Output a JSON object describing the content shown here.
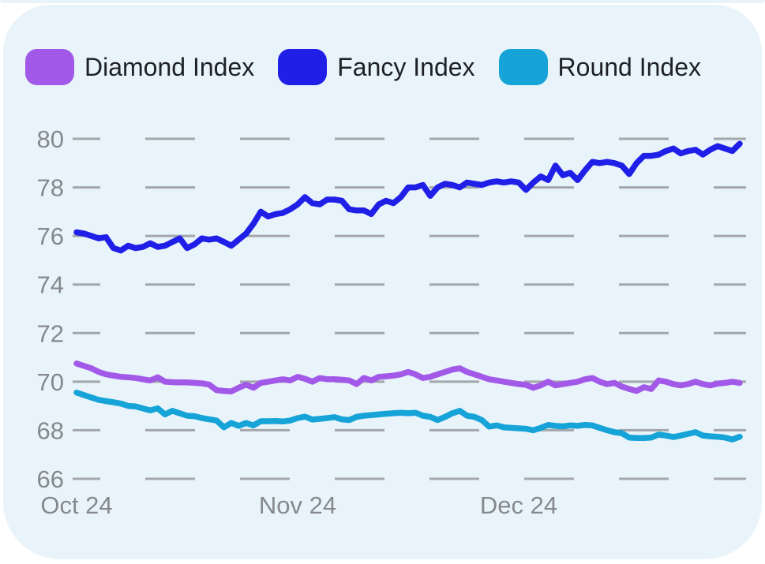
{
  "card": {
    "background": "#e9f4fa"
  },
  "legend": {
    "items": [
      {
        "label": "Diamond Index",
        "color": "#a259e8"
      },
      {
        "label": "Fancy Index",
        "color": "#1f1fe8"
      },
      {
        "label": "Round Index",
        "color": "#16a4d8"
      }
    ]
  },
  "chart_data": {
    "type": "line",
    "title": "",
    "xlabel": "",
    "ylabel": "",
    "grid": true,
    "grid_color": "#a3a7ab",
    "axis_text_color": "#85898d",
    "legend_position": "top",
    "y_ticks": [
      80,
      78,
      76,
      74,
      72,
      70,
      68,
      66
    ],
    "ylim": [
      65.5,
      80.5
    ],
    "x_tick_labels": [
      "Oct 24",
      "Nov 24",
      "Dec 24"
    ],
    "x_tick_indices": [
      0,
      30,
      60
    ],
    "series": [
      {
        "name": "Diamond Index",
        "color": "#a259e8",
        "values": [
          70.75,
          70.65,
          70.55,
          70.4,
          70.3,
          70.25,
          70.2,
          70.18,
          70.15,
          70.1,
          70.05,
          70.18,
          70.0,
          69.98,
          69.97,
          69.97,
          69.95,
          69.93,
          69.88,
          69.65,
          69.62,
          69.6,
          69.75,
          69.88,
          69.75,
          69.95,
          70.0,
          70.05,
          70.1,
          70.05,
          70.2,
          70.12,
          70.0,
          70.15,
          70.1,
          70.1,
          70.08,
          70.05,
          69.9,
          70.15,
          70.05,
          70.2,
          70.22,
          70.25,
          70.3,
          70.4,
          70.3,
          70.15,
          70.2,
          70.3,
          70.4,
          70.5,
          70.55,
          70.4,
          70.3,
          70.2,
          70.1,
          70.05,
          70.0,
          69.95,
          69.9,
          69.87,
          69.75,
          69.85,
          70.0,
          69.85,
          69.9,
          69.95,
          70.0,
          70.1,
          70.15,
          70.0,
          69.9,
          69.95,
          69.8,
          69.7,
          69.62,
          69.77,
          69.7,
          70.05,
          70.0,
          69.9,
          69.85,
          69.9,
          70.0,
          69.9,
          69.85,
          69.92,
          69.95,
          70.0,
          69.95
        ]
      },
      {
        "name": "Fancy Index",
        "color": "#1f1fe8",
        "values": [
          76.15,
          76.1,
          76.0,
          75.9,
          75.95,
          75.5,
          75.4,
          75.6,
          75.5,
          75.55,
          75.7,
          75.55,
          75.6,
          75.75,
          75.9,
          75.5,
          75.65,
          75.9,
          75.85,
          75.9,
          75.75,
          75.6,
          75.85,
          76.1,
          76.5,
          77.0,
          76.8,
          76.9,
          76.95,
          77.1,
          77.3,
          77.6,
          77.35,
          77.3,
          77.5,
          77.5,
          77.45,
          77.1,
          77.05,
          77.05,
          76.9,
          77.3,
          77.45,
          77.35,
          77.6,
          78.0,
          78.0,
          78.1,
          77.65,
          78.0,
          78.15,
          78.1,
          78.0,
          78.2,
          78.15,
          78.1,
          78.2,
          78.25,
          78.2,
          78.25,
          78.2,
          77.9,
          78.2,
          78.45,
          78.3,
          78.9,
          78.5,
          78.6,
          78.3,
          78.7,
          79.05,
          79.0,
          79.05,
          79.0,
          78.9,
          78.55,
          79.0,
          79.3,
          79.3,
          79.35,
          79.5,
          79.6,
          79.4,
          79.5,
          79.55,
          79.35,
          79.55,
          79.7,
          79.6,
          79.5,
          79.8
        ]
      },
      {
        "name": "Round Index",
        "color": "#16a4d8",
        "values": [
          69.55,
          69.45,
          69.35,
          69.25,
          69.2,
          69.15,
          69.1,
          69.0,
          68.98,
          68.9,
          68.82,
          68.9,
          68.65,
          68.8,
          68.7,
          68.6,
          68.58,
          68.5,
          68.45,
          68.4,
          68.12,
          68.3,
          68.18,
          68.3,
          68.2,
          68.37,
          68.37,
          68.38,
          68.36,
          68.4,
          68.5,
          68.56,
          68.44,
          68.47,
          68.5,
          68.54,
          68.45,
          68.42,
          68.55,
          68.6,
          68.62,
          68.65,
          68.68,
          68.7,
          68.72,
          68.7,
          68.72,
          68.6,
          68.55,
          68.42,
          68.55,
          68.7,
          68.8,
          68.6,
          68.55,
          68.42,
          68.15,
          68.2,
          68.12,
          68.1,
          68.08,
          68.06,
          68.0,
          68.1,
          68.22,
          68.18,
          68.16,
          68.2,
          68.18,
          68.22,
          68.2,
          68.1,
          68.0,
          67.92,
          67.88,
          67.7,
          67.68,
          67.68,
          67.7,
          67.82,
          67.78,
          67.72,
          67.78,
          67.85,
          67.92,
          67.78,
          67.75,
          67.73,
          67.7,
          67.62,
          67.73
        ]
      }
    ]
  }
}
